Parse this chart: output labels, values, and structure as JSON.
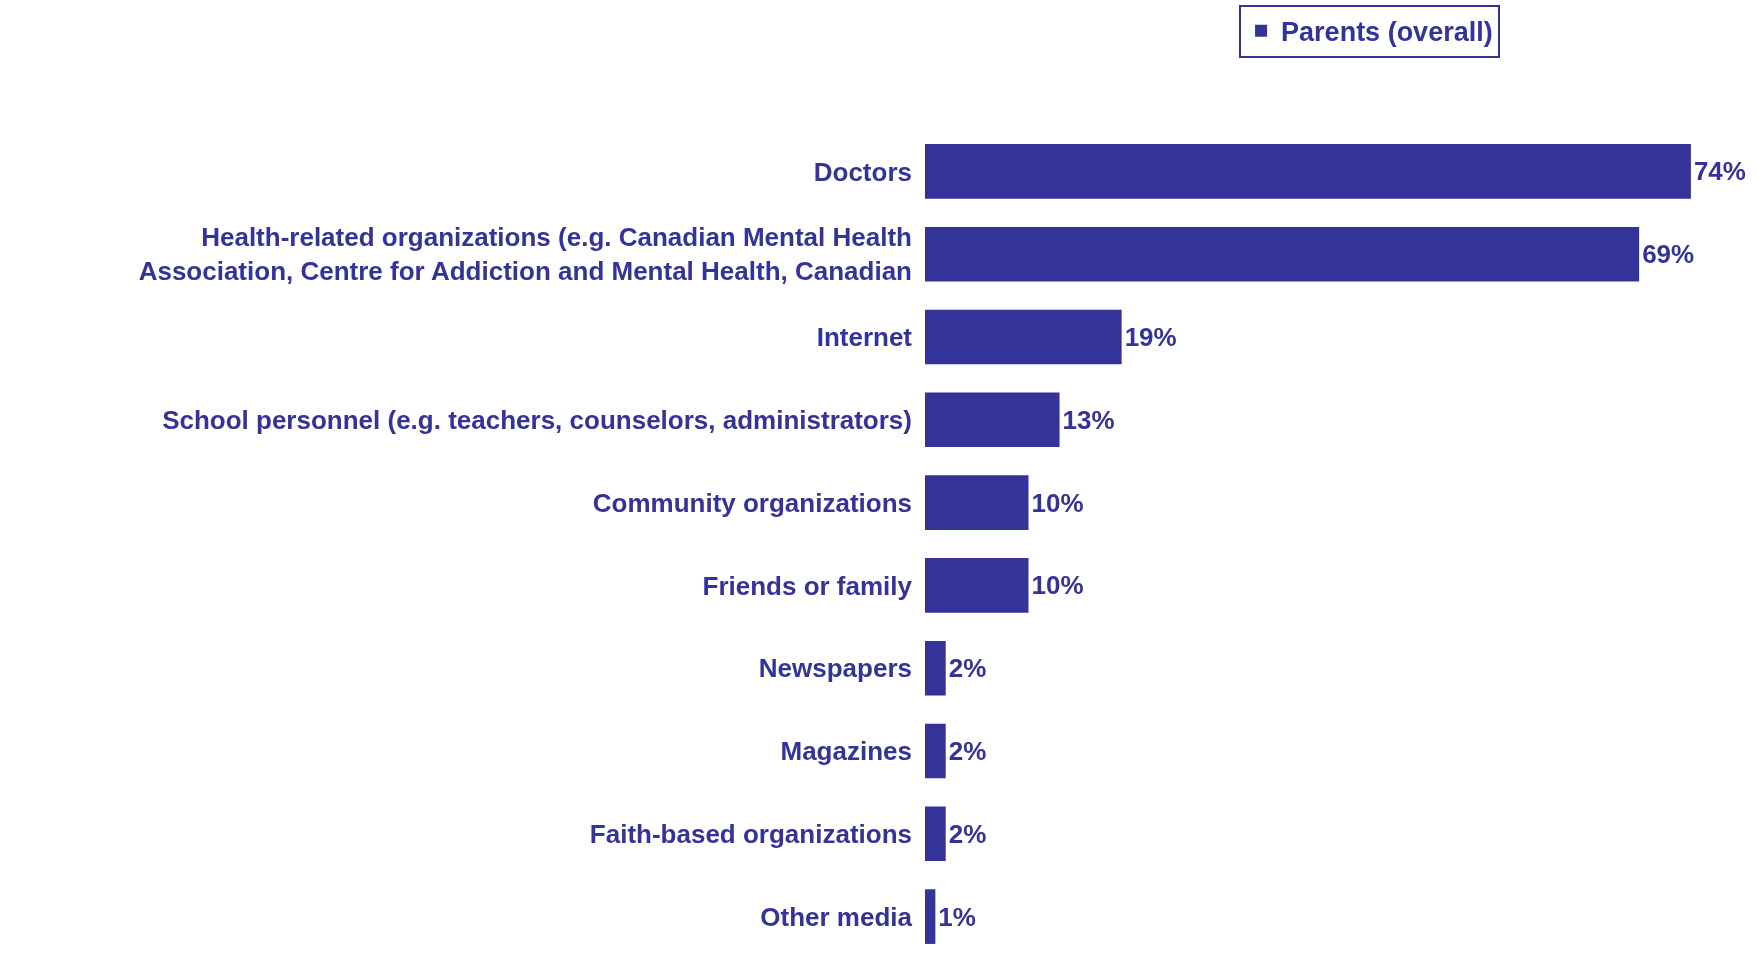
{
  "chart_data": {
    "type": "bar",
    "orientation": "horizontal",
    "categories": [
      "Doctors",
      "Health-related organizations (e.g. Canadian Mental Health Association, Centre for Addiction and Mental Health, Canadian",
      "Internet",
      "School personnel (e.g. teachers, counselors, administrators)",
      "Community organizations",
      "Friends or family",
      "Newspapers",
      "Magazines",
      "Faith-based organizations",
      "Other media"
    ],
    "series": [
      {
        "name": "Parents (overall)",
        "color": "#333399",
        "values": [
          74,
          69,
          19,
          13,
          10,
          10,
          2,
          2,
          2,
          1
        ],
        "value_labels": [
          "74%",
          "69%",
          "19%",
          "13%",
          "10%",
          "10%",
          "2%",
          "2%",
          "2%",
          "1%"
        ]
      }
    ],
    "legend": "top"
  }
}
